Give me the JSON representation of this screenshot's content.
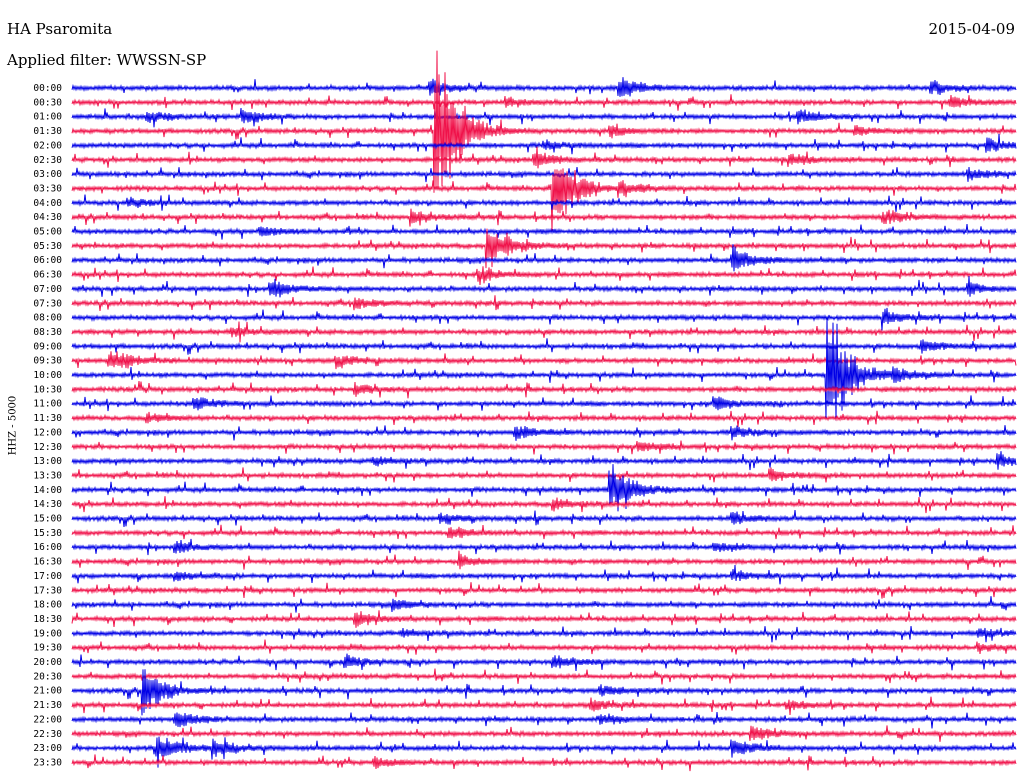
{
  "header": {
    "station": "HA Psaromita",
    "filter": "Applied filter: WWSSN-SP",
    "date": "2015-04-09"
  },
  "chart_data": {
    "type": "line",
    "title": "HA Psaromita",
    "subtitle": "Applied filter: WWSSN-SP",
    "ylabel": "HHZ - 5000",
    "row_labels": [
      "00:00",
      "00:30",
      "01:00",
      "01:30",
      "02:00",
      "02:30",
      "03:00",
      "03:30",
      "04:00",
      "04:30",
      "05:00",
      "05:30",
      "06:00",
      "06:30",
      "07:00",
      "07:30",
      "08:00",
      "08:30",
      "09:00",
      "09:30",
      "10:00",
      "10:30",
      "11:00",
      "11:30",
      "12:00",
      "12:30",
      "13:00",
      "13:30",
      "14:00",
      "14:30",
      "15:00",
      "15:30",
      "16:00",
      "16:30",
      "17:00",
      "17:30",
      "18:00",
      "18:30",
      "19:00",
      "19:30",
      "20:00",
      "20:30",
      "21:00",
      "21:30",
      "22:00",
      "22:30",
      "23:00",
      "23:30"
    ],
    "row_minutes": 30,
    "trace_colors": [
      "#0000e6",
      "#f0124a"
    ],
    "grid": false,
    "events": [
      {
        "row": 0,
        "pos": 0.38,
        "amp": 10
      },
      {
        "row": 0,
        "pos": 0.58,
        "amp": 14
      },
      {
        "row": 0,
        "pos": 0.91,
        "amp": 7
      },
      {
        "row": 1,
        "pos": 0.46,
        "amp": 5
      },
      {
        "row": 1,
        "pos": 0.93,
        "amp": 8
      },
      {
        "row": 2,
        "pos": 0.08,
        "amp": 7
      },
      {
        "row": 2,
        "pos": 0.18,
        "amp": 8
      },
      {
        "row": 2,
        "pos": 0.77,
        "amp": 9
      },
      {
        "row": 3,
        "pos": 0.385,
        "amp": 130
      },
      {
        "row": 3,
        "pos": 0.57,
        "amp": 6
      },
      {
        "row": 3,
        "pos": 0.83,
        "amp": 6
      },
      {
        "row": 4,
        "pos": 0.5,
        "amp": 6
      },
      {
        "row": 4,
        "pos": 0.97,
        "amp": 8
      },
      {
        "row": 5,
        "pos": 0.49,
        "amp": 10
      },
      {
        "row": 5,
        "pos": 0.76,
        "amp": 7
      },
      {
        "row": 6,
        "pos": 0.95,
        "amp": 8
      },
      {
        "row": 7,
        "pos": 0.51,
        "amp": 60
      },
      {
        "row": 7,
        "pos": 0.58,
        "amp": 9
      },
      {
        "row": 8,
        "pos": 0.06,
        "amp": 6
      },
      {
        "row": 9,
        "pos": 0.36,
        "amp": 10
      },
      {
        "row": 9,
        "pos": 0.86,
        "amp": 9
      },
      {
        "row": 10,
        "pos": 0.2,
        "amp": 6
      },
      {
        "row": 11,
        "pos": 0.44,
        "amp": 30
      },
      {
        "row": 12,
        "pos": 0.7,
        "amp": 16
      },
      {
        "row": 13,
        "pos": 0.43,
        "amp": 10
      },
      {
        "row": 14,
        "pos": 0.21,
        "amp": 12
      },
      {
        "row": 14,
        "pos": 0.95,
        "amp": 7
      },
      {
        "row": 15,
        "pos": 0.3,
        "amp": 7
      },
      {
        "row": 16,
        "pos": 0.86,
        "amp": 9
      },
      {
        "row": 17,
        "pos": 0.17,
        "amp": 7
      },
      {
        "row": 18,
        "pos": 0.9,
        "amp": 8
      },
      {
        "row": 19,
        "pos": 0.04,
        "amp": 14
      },
      {
        "row": 19,
        "pos": 0.28,
        "amp": 8
      },
      {
        "row": 20,
        "pos": 0.8,
        "amp": 90
      },
      {
        "row": 20,
        "pos": 0.87,
        "amp": 8
      },
      {
        "row": 21,
        "pos": 0.3,
        "amp": 6
      },
      {
        "row": 22,
        "pos": 0.13,
        "amp": 8
      },
      {
        "row": 22,
        "pos": 0.68,
        "amp": 9
      },
      {
        "row": 23,
        "pos": 0.08,
        "amp": 6
      },
      {
        "row": 24,
        "pos": 0.47,
        "amp": 10
      },
      {
        "row": 24,
        "pos": 0.7,
        "amp": 7
      },
      {
        "row": 25,
        "pos": 0.6,
        "amp": 7
      },
      {
        "row": 26,
        "pos": 0.32,
        "amp": 6
      },
      {
        "row": 26,
        "pos": 0.98,
        "amp": 8
      },
      {
        "row": 27,
        "pos": 0.74,
        "amp": 7
      },
      {
        "row": 28,
        "pos": 0.57,
        "amp": 35
      },
      {
        "row": 29,
        "pos": 0.51,
        "amp": 8
      },
      {
        "row": 30,
        "pos": 0.39,
        "amp": 7
      },
      {
        "row": 30,
        "pos": 0.7,
        "amp": 7
      },
      {
        "row": 31,
        "pos": 0.4,
        "amp": 8
      },
      {
        "row": 32,
        "pos": 0.11,
        "amp": 7
      },
      {
        "row": 32,
        "pos": 0.68,
        "amp": 7
      },
      {
        "row": 33,
        "pos": 0.41,
        "amp": 7
      },
      {
        "row": 34,
        "pos": 0.11,
        "amp": 6
      },
      {
        "row": 34,
        "pos": 0.7,
        "amp": 6
      },
      {
        "row": 36,
        "pos": 0.34,
        "amp": 8
      },
      {
        "row": 37,
        "pos": 0.3,
        "amp": 9
      },
      {
        "row": 38,
        "pos": 0.35,
        "amp": 5
      },
      {
        "row": 38,
        "pos": 0.96,
        "amp": 5
      },
      {
        "row": 39,
        "pos": 0.96,
        "amp": 5
      },
      {
        "row": 40,
        "pos": 0.29,
        "amp": 8
      },
      {
        "row": 40,
        "pos": 0.51,
        "amp": 8
      },
      {
        "row": 42,
        "pos": 0.076,
        "amp": 30
      },
      {
        "row": 42,
        "pos": 0.56,
        "amp": 7
      },
      {
        "row": 43,
        "pos": 0.55,
        "amp": 7
      },
      {
        "row": 43,
        "pos": 0.76,
        "amp": 6
      },
      {
        "row": 44,
        "pos": 0.11,
        "amp": 12
      },
      {
        "row": 44,
        "pos": 0.56,
        "amp": 6
      },
      {
        "row": 45,
        "pos": 0.72,
        "amp": 9
      },
      {
        "row": 46,
        "pos": 0.09,
        "amp": 22
      },
      {
        "row": 46,
        "pos": 0.15,
        "amp": 10
      },
      {
        "row": 46,
        "pos": 0.7,
        "amp": 12
      },
      {
        "row": 47,
        "pos": 0.32,
        "amp": 6
      }
    ]
  }
}
